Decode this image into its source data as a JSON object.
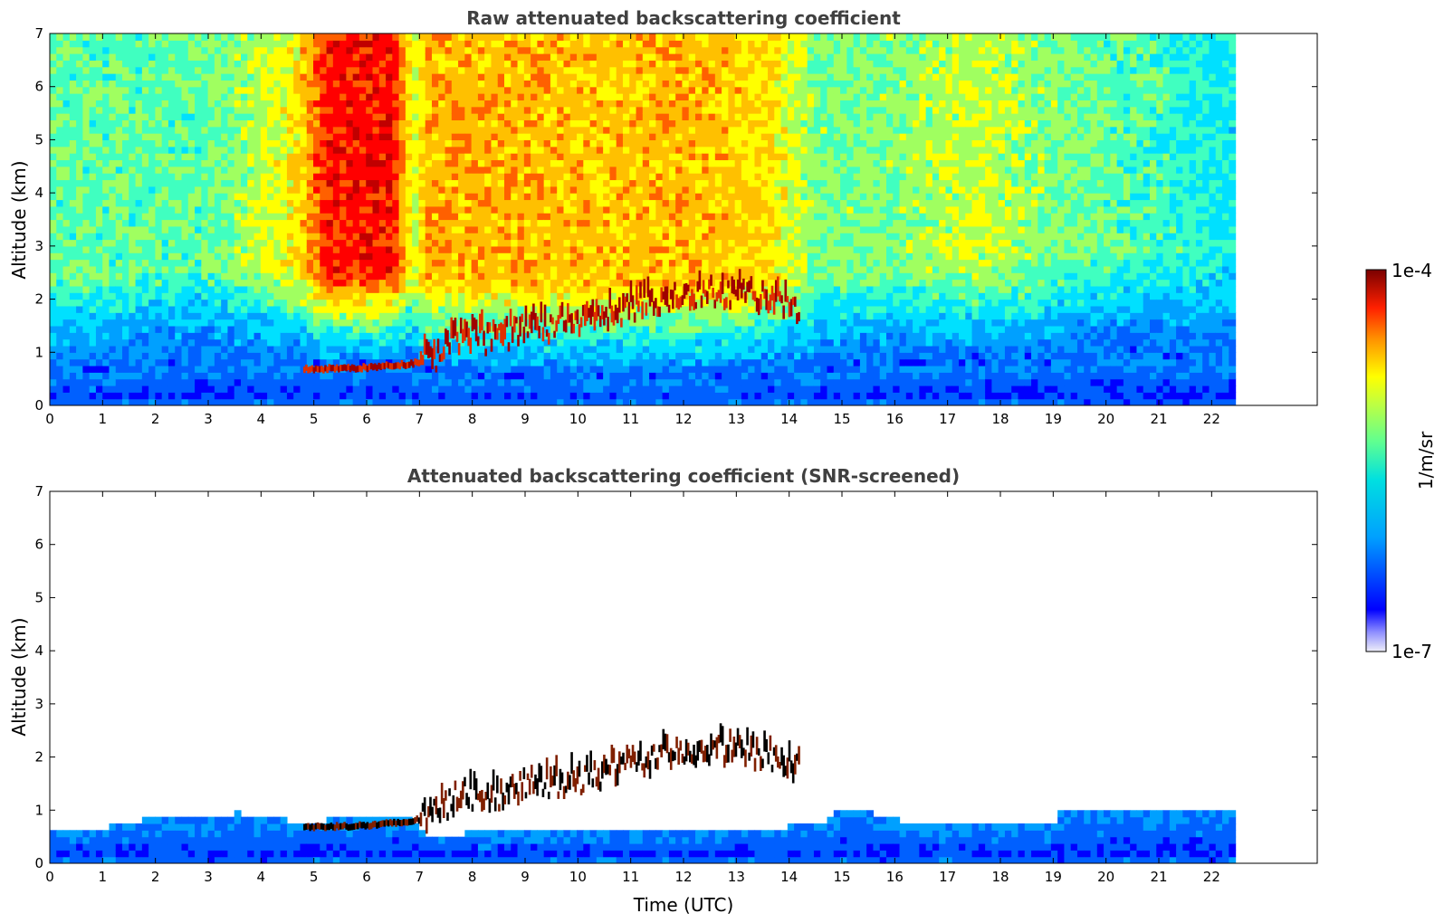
{
  "chart_data": [
    {
      "type": "heatmap",
      "title": "Raw attenuated backscattering coefficient",
      "xlabel": "",
      "ylabel": "Altitude (km)",
      "xlim": [
        0,
        24
      ],
      "ylim": [
        0,
        7
      ],
      "xticks": [
        "0",
        "1",
        "2",
        "3",
        "4",
        "5",
        "6",
        "7",
        "8",
        "9",
        "10",
        "11",
        "12",
        "13",
        "14",
        "15",
        "16",
        "17",
        "18",
        "19",
        "20",
        "21",
        "22"
      ],
      "yticks": [
        "0",
        "1",
        "2",
        "3",
        "4",
        "5",
        "6",
        "7"
      ],
      "data_extent_hours": [
        0,
        22.45
      ],
      "background_noise_levels": [
        {
          "t": 0,
          "level": 0.52
        },
        {
          "t": 3,
          "level": 0.52
        },
        {
          "t": 4.7,
          "level": 0.66
        },
        {
          "t": 5.2,
          "level": 0.84
        },
        {
          "t": 6.5,
          "level": 0.86
        },
        {
          "t": 6.9,
          "level": 0.6
        },
        {
          "t": 7.1,
          "level": 0.72
        },
        {
          "t": 9,
          "level": 0.72
        },
        {
          "t": 10.5,
          "level": 0.7
        },
        {
          "t": 12,
          "level": 0.72
        },
        {
          "t": 13.5,
          "level": 0.68
        },
        {
          "t": 14.5,
          "level": 0.55
        },
        {
          "t": 16,
          "level": 0.55
        },
        {
          "t": 17.5,
          "level": 0.6
        },
        {
          "t": 19,
          "level": 0.55
        },
        {
          "t": 22.45,
          "level": 0.45
        }
      ],
      "boundary_layer_top_km": [
        {
          "t": 0,
          "h": 0.55
        },
        {
          "t": 1,
          "h": 0.6
        },
        {
          "t": 2,
          "h": 0.75
        },
        {
          "t": 3,
          "h": 0.85
        },
        {
          "t": 4,
          "h": 0.8
        },
        {
          "t": 4.7,
          "h": 0.75
        },
        {
          "t": 6.8,
          "h": 0.75
        },
        {
          "t": 7,
          "h": 0.6
        },
        {
          "t": 10,
          "h": 0.5
        },
        {
          "t": 14,
          "h": 0.55
        },
        {
          "t": 16,
          "h": 0.8
        },
        {
          "t": 19,
          "h": 0.8
        },
        {
          "t": 20,
          "h": 1.0
        },
        {
          "t": 22.45,
          "h": 0.85
        }
      ],
      "cloud_layer_km": [
        {
          "t": 4.8,
          "h": 0.62
        },
        {
          "t": 6.0,
          "h": 0.65
        },
        {
          "t": 6.8,
          "h": 0.72
        },
        {
          "t": 7.3,
          "h": 0.85
        },
        {
          "t": 7.8,
          "h": 1.25
        },
        {
          "t": 8.3,
          "h": 1.15
        },
        {
          "t": 9.0,
          "h": 1.35
        },
        {
          "t": 10.0,
          "h": 1.45
        },
        {
          "t": 11.0,
          "h": 1.75
        },
        {
          "t": 12.0,
          "h": 2.0
        },
        {
          "t": 13.0,
          "h": 2.05
        },
        {
          "t": 14.2,
          "h": 1.7
        }
      ],
      "colorbar": {
        "min_label": "1e-7",
        "max_label": "1e-4",
        "unit": "1/m/sr",
        "scale": "log"
      }
    },
    {
      "type": "heatmap",
      "title": "Attenuated backscattering coefficient (SNR-screened)",
      "xlabel": "Time (UTC)",
      "ylabel": "Altitude (km)",
      "xlim": [
        0,
        24
      ],
      "ylim": [
        0,
        7
      ],
      "xticks": [
        "0",
        "1",
        "2",
        "3",
        "4",
        "5",
        "6",
        "7",
        "8",
        "9",
        "10",
        "11",
        "12",
        "13",
        "14",
        "15",
        "16",
        "17",
        "18",
        "19",
        "20",
        "21",
        "22"
      ],
      "yticks": [
        "0",
        "1",
        "2",
        "3",
        "4",
        "5",
        "6",
        "7"
      ],
      "data_extent_hours": [
        0,
        22.45
      ],
      "screened_layer_top_km": [
        {
          "t": 0,
          "h": 0.6
        },
        {
          "t": 1,
          "h": 0.65
        },
        {
          "t": 1.2,
          "h": 0.75
        },
        {
          "t": 2,
          "h": 0.85
        },
        {
          "t": 3,
          "h": 0.9
        },
        {
          "t": 3.6,
          "h": 0.95
        },
        {
          "t": 4.0,
          "h": 0.85
        },
        {
          "t": 4.7,
          "h": 0.8
        },
        {
          "t": 6.8,
          "h": 0.85
        },
        {
          "t": 7.1,
          "h": 0.55
        },
        {
          "t": 10,
          "h": 0.6
        },
        {
          "t": 14.5,
          "h": 0.7
        },
        {
          "t": 15,
          "h": 1.0
        },
        {
          "t": 16,
          "h": 0.9
        },
        {
          "t": 16.3,
          "h": 0.7
        },
        {
          "t": 19,
          "h": 0.75
        },
        {
          "t": 19.2,
          "h": 1.05
        },
        {
          "t": 22.45,
          "h": 1.0
        }
      ],
      "cloud_layer_km": [
        {
          "t": 4.8,
          "h": 0.62
        },
        {
          "t": 6.0,
          "h": 0.65
        },
        {
          "t": 6.8,
          "h": 0.72
        },
        {
          "t": 7.3,
          "h": 0.85
        },
        {
          "t": 7.8,
          "h": 1.25
        },
        {
          "t": 8.3,
          "h": 1.15
        },
        {
          "t": 9.0,
          "h": 1.35
        },
        {
          "t": 10.0,
          "h": 1.45
        },
        {
          "t": 11.0,
          "h": 1.75
        },
        {
          "t": 12.0,
          "h": 2.0
        },
        {
          "t": 13.0,
          "h": 2.05
        },
        {
          "t": 14.2,
          "h": 1.7
        }
      ],
      "colorbar": {
        "min_label": "1e-7",
        "max_label": "1e-4",
        "unit": "1/m/sr",
        "scale": "log"
      }
    }
  ],
  "colorbar": {
    "max_label": "1e-4",
    "min_label": "1e-7",
    "unit_label": "1/m/sr",
    "colormap": "jet",
    "colors": [
      "#e8e8f8",
      "#c0c0f0",
      "#9090ff",
      "#0000ff",
      "#0060ff",
      "#00a0ff",
      "#00e0ff",
      "#40ffc0",
      "#a0ff60",
      "#ffff00",
      "#ffc000",
      "#ff6000",
      "#ff0000",
      "#c00000",
      "#800000"
    ]
  }
}
